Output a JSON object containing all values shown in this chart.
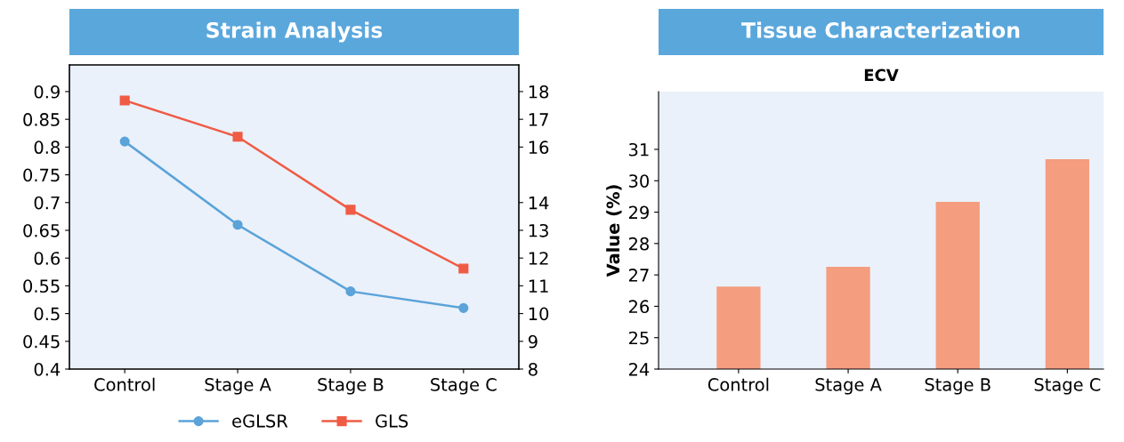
{
  "chart_data": [
    {
      "type": "line",
      "title": "Strain Analysis",
      "categories": [
        "Control",
        "Stage A",
        "Stage B",
        "Stage C"
      ],
      "series": [
        {
          "name": "eGLSR",
          "color": "#5ba3d9",
          "marker": "circle",
          "values": [
            0.81,
            0.66,
            0.54,
            0.51
          ]
        },
        {
          "name": "GLS",
          "color": "#ef5b45",
          "marker": "square",
          "axis": "y2",
          "values": [
            17.68,
            16.37,
            13.74,
            11.62
          ]
        }
      ],
      "ylim": [
        0.4,
        0.948
      ],
      "yticks": [
        0.4,
        0.45,
        0.5,
        0.55,
        0.6,
        0.65,
        0.7,
        0.75,
        0.8,
        0.85,
        0.9
      ],
      "y2lim": [
        8,
        18.96
      ],
      "y2ticks": [
        8,
        9,
        10,
        11,
        12,
        13,
        14,
        16,
        17,
        18
      ],
      "grid": false,
      "legend": "bottom",
      "line_style": "solid"
    },
    {
      "type": "bar",
      "title": "Tissue Characterization",
      "subtitle": "ECV",
      "ylabel": "Value (%)",
      "categories": [
        "Control",
        "Stage A",
        "Stage B",
        "Stage C"
      ],
      "values": [
        26.63,
        27.26,
        29.33,
        30.69
      ],
      "color": "#f49d7f",
      "ylim": [
        24,
        32.84
      ],
      "yticks": [
        24,
        25,
        26,
        27,
        28,
        29,
        30,
        31
      ],
      "grid": false
    }
  ]
}
